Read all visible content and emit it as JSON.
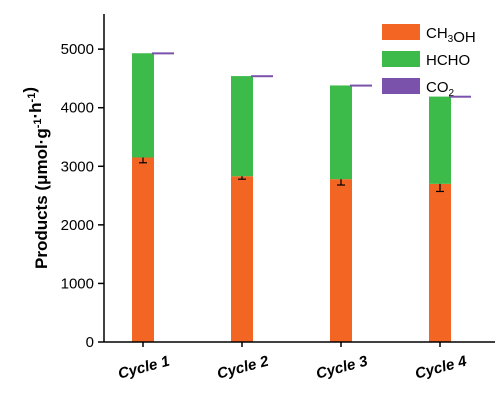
{
  "chart_data": {
    "type": "bar",
    "stacked": true,
    "categories": [
      "Cycle 1",
      "Cycle 2",
      "Cycle 3",
      "Cycle 4"
    ],
    "ylabel": "Products (μmol·g⁻¹·h⁻¹)",
    "ylim": [
      0,
      5600
    ],
    "yticks": [
      0,
      1000,
      2000,
      3000,
      4000,
      5000
    ],
    "grid": false,
    "legend_position": "top-right",
    "series": [
      {
        "name": "CH3OH",
        "color": "#f26522",
        "values": [
          3150,
          2830,
          2780,
          2700
        ],
        "errors": [
          90,
          50,
          100,
          130
        ]
      },
      {
        "name": "HCHO",
        "color": "#3dbb4a",
        "values": [
          1780,
          1710,
          1600,
          1490
        ]
      },
      {
        "name": "CO2",
        "color": "#7b52ab",
        "values": [
          15,
          15,
          15,
          15
        ]
      }
    ]
  }
}
